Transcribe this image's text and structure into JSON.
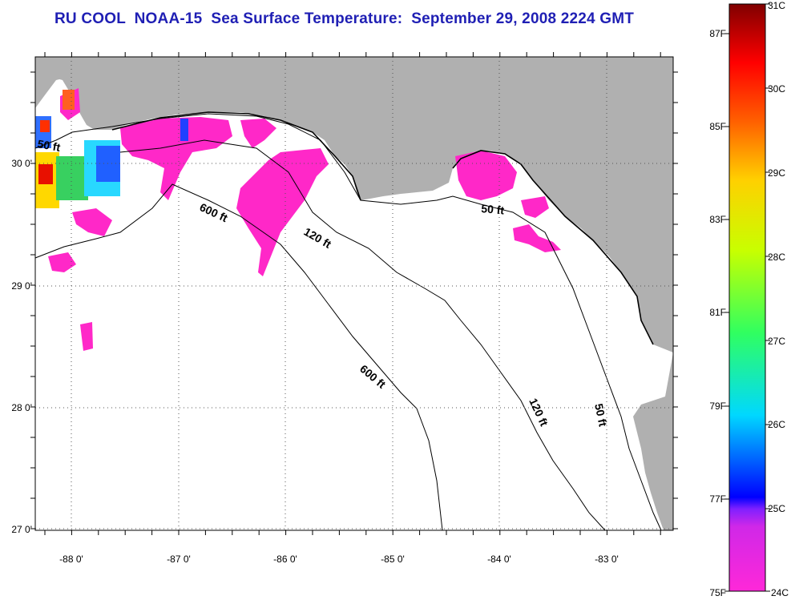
{
  "title": "RU COOL  NOAA-15  Sea Surface Temperature:  September 29, 2008 2224 GMT",
  "map": {
    "lon_ticks": [
      "-88 0'",
      "-87 0'",
      "-86 0'",
      "-85 0'",
      "-84 0'",
      "-83 0'"
    ],
    "lat_ticks": [
      "30 0'",
      "29 0'",
      "28 0'",
      "27 0'"
    ],
    "contour_labels": [
      "50 ft",
      "600 ft",
      "120 ft",
      "50 ft",
      "600 ft",
      "120 ft",
      "50 ft"
    ],
    "land_color": "#b0b0b0",
    "water_color": "#ffffff",
    "sst_cool_color": "#ff28c8",
    "grid": "dotted"
  },
  "colorbar": {
    "fahrenheit_labels": [
      "87F",
      "85F",
      "83F",
      "81F",
      "79F",
      "77F",
      "75F"
    ],
    "celsius_labels": [
      "31C",
      "30C",
      "29C",
      "28C",
      "27C",
      "26C",
      "25C",
      "24C"
    ],
    "range_c": [
      24,
      31
    ]
  }
}
